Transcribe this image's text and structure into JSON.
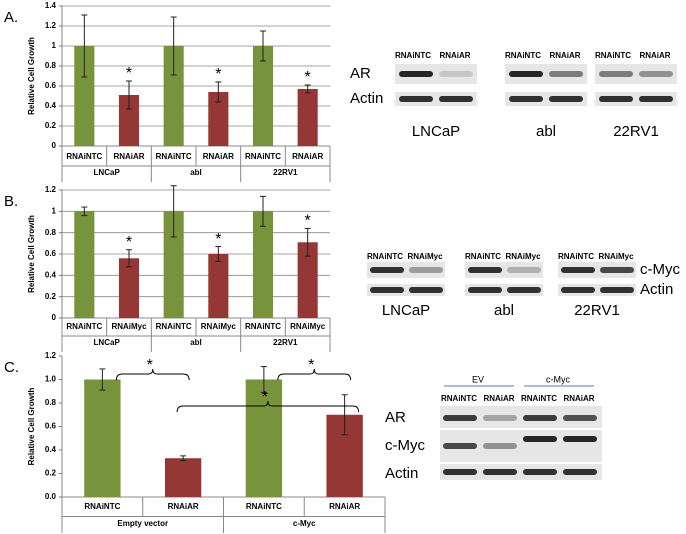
{
  "chart_data": [
    {
      "type": "bar",
      "panel": "A.",
      "y_label": "Relative Cell Growth",
      "categories": [
        "RNAiNTC",
        "RNAiAR",
        "RNAiNTC",
        "RNAiAR",
        "RNAiNTC",
        "RNAiAR"
      ],
      "groups": [
        "LNCaP",
        "abl",
        "22RV1"
      ],
      "values": [
        1,
        0.51,
        1,
        0.54,
        1,
        0.57
      ],
      "errors": [
        0.31,
        0.14,
        0.29,
        0.1,
        0.15,
        0.04
      ],
      "colors": [
        "#77933c",
        "#953735",
        "#77933c",
        "#953735",
        "#77933c",
        "#953735"
      ],
      "significance_labels": [
        null,
        "*",
        null,
        "*",
        null,
        "*"
      ],
      "ylim": [
        0,
        1.4
      ],
      "yticks": [
        0,
        0.2,
        0.4,
        0.6,
        0.8,
        1,
        1.2,
        1.4
      ],
      "grid": true
    },
    {
      "type": "bar",
      "panel": "B.",
      "y_label": "Relative Cell Growth",
      "categories": [
        "RNAiNTC",
        "RNAiMyc",
        "RNAiNTC",
        "RNAiMyc",
        "RNAiNTC",
        "RNAiMyc"
      ],
      "groups": [
        "LNCaP",
        "abl",
        "22RV1"
      ],
      "values": [
        1,
        0.56,
        1,
        0.6,
        1,
        0.71
      ],
      "errors": [
        0.04,
        0.08,
        0.24,
        0.07,
        0.14,
        0.13
      ],
      "colors": [
        "#77933c",
        "#953735",
        "#77933c",
        "#953735",
        "#77933c",
        "#953735"
      ],
      "significance_labels": [
        null,
        "*",
        null,
        "*",
        null,
        "*"
      ],
      "ylim": [
        0,
        1.2
      ],
      "yticks": [
        0,
        0.2,
        0.4,
        0.6,
        0.8,
        1,
        1.2
      ],
      "grid": true
    },
    {
      "type": "bar",
      "panel": "C.",
      "y_label": "Relative Cell Growth",
      "categories": [
        "RNAiNTC",
        "RNAiAR",
        "RNAiNTC",
        "RNAiAR"
      ],
      "groups": [
        "Empty vector",
        "c-Myc"
      ],
      "values": [
        1,
        0.33,
        1,
        0.7
      ],
      "errors": [
        0.09,
        0.02,
        0.11,
        0.17
      ],
      "colors": [
        "#77933c",
        "#953735",
        "#77933c",
        "#953735"
      ],
      "annotations": [
        "*",
        "*",
        "*"
      ],
      "ylim": [
        0,
        1.2
      ],
      "yticks": [
        {
          "value": 0,
          "label": "0.0"
        },
        0.2,
        0.4,
        0.6,
        0.8,
        {
          "value": 1,
          "label": "1.0"
        },
        1.2
      ],
      "grid": false
    }
  ],
  "blots": {
    "A": {
      "lanes": [
        "RNAiNTC",
        "RNAiAR"
      ],
      "cells": [
        "LNCaP",
        "abl",
        "22RV1"
      ],
      "rows": [
        "AR",
        "Actin"
      ]
    },
    "B": {
      "lanes": [
        "RNAiNTC",
        "RNAiMyc"
      ],
      "cells": [
        "LNCaP",
        "abl",
        "22RV1"
      ],
      "rows": [
        "c-Myc",
        "Actin"
      ]
    },
    "C": {
      "groups": [
        "EV",
        "c-Myc"
      ],
      "lanes": [
        "RNAiNTC",
        "RNAiAR",
        "RNAiNTC",
        "RNAiAR"
      ],
      "rows": [
        "AR",
        "c-Myc",
        "Actin"
      ]
    }
  }
}
